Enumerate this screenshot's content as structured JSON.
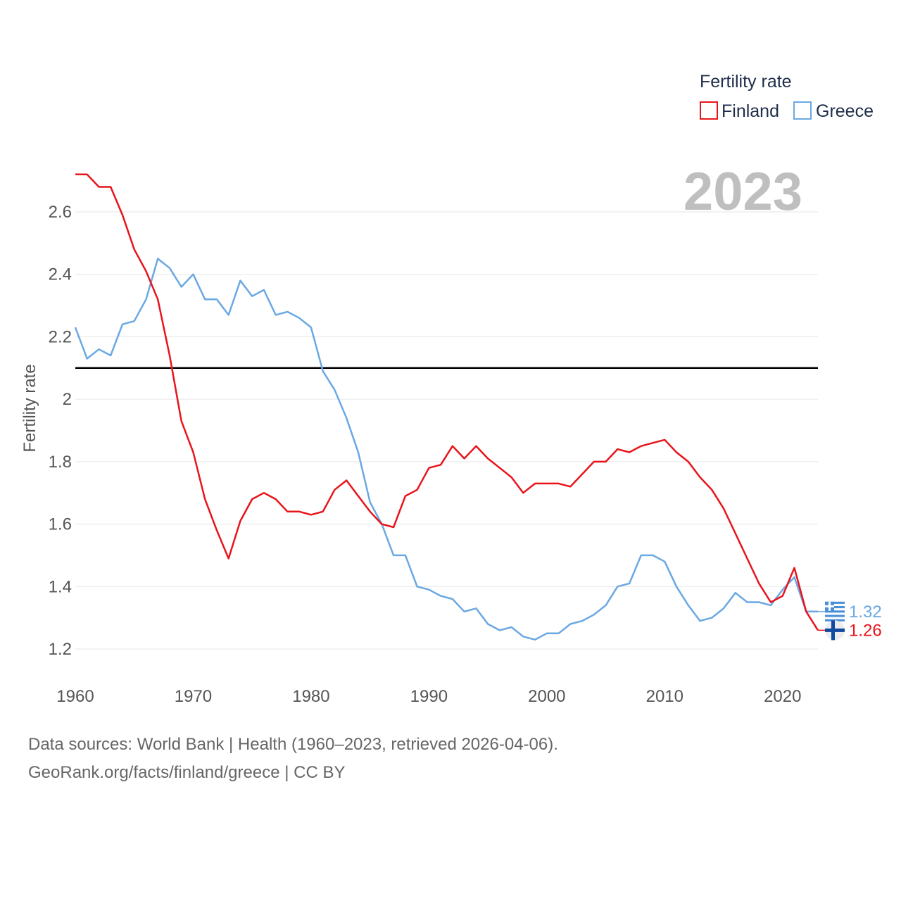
{
  "chart_data": {
    "type": "line",
    "title": "",
    "year_label": "2023",
    "legend_title": "Fertility rate",
    "ylabel": "Fertility rate",
    "xlabel": "",
    "xlim": [
      1960,
      2023
    ],
    "ylim": [
      1.13,
      2.75
    ],
    "x_ticks": [
      1960,
      1970,
      1980,
      1990,
      2000,
      2010,
      2020
    ],
    "y_ticks": [
      1.2,
      1.4,
      1.6,
      1.8,
      2,
      2.2,
      2.4,
      2.6
    ],
    "y_tick_labels": [
      "1.2",
      "1.4",
      "1.6",
      "1.8",
      "2",
      "2.2",
      "2.4",
      "2.6"
    ],
    "x_tick_labels": [
      "1960",
      "1970",
      "1980",
      "1990",
      "2000",
      "2010",
      "2020"
    ],
    "reference_line": 2.1,
    "years": [
      1960,
      1961,
      1962,
      1963,
      1964,
      1965,
      1966,
      1967,
      1968,
      1969,
      1970,
      1971,
      1972,
      1973,
      1974,
      1975,
      1976,
      1977,
      1978,
      1979,
      1980,
      1981,
      1982,
      1983,
      1984,
      1985,
      1986,
      1987,
      1988,
      1989,
      1990,
      1991,
      1992,
      1993,
      1994,
      1995,
      1996,
      1997,
      1998,
      1999,
      2000,
      2001,
      2002,
      2003,
      2004,
      2005,
      2006,
      2007,
      2008,
      2009,
      2010,
      2011,
      2012,
      2013,
      2014,
      2015,
      2016,
      2017,
      2018,
      2019,
      2020,
      2021,
      2022,
      2023
    ],
    "series": [
      {
        "name": "Finland",
        "color": "#e8141b",
        "end_label": "1.26",
        "values": [
          2.72,
          2.72,
          2.68,
          2.68,
          2.59,
          2.48,
          2.41,
          2.32,
          2.14,
          1.93,
          1.83,
          1.68,
          1.58,
          1.49,
          1.61,
          1.68,
          1.7,
          1.68,
          1.64,
          1.64,
          1.63,
          1.64,
          1.71,
          1.74,
          1.69,
          1.64,
          1.6,
          1.59,
          1.69,
          1.71,
          1.78,
          1.79,
          1.85,
          1.81,
          1.85,
          1.81,
          1.78,
          1.75,
          1.7,
          1.73,
          1.73,
          1.73,
          1.72,
          1.76,
          1.8,
          1.8,
          1.84,
          1.83,
          1.85,
          1.86,
          1.87,
          1.83,
          1.8,
          1.75,
          1.71,
          1.65,
          1.57,
          1.49,
          1.41,
          1.35,
          1.37,
          1.46,
          1.32,
          1.26
        ]
      },
      {
        "name": "Greece",
        "color": "#6aa8e3",
        "end_label": "1.32",
        "values": [
          2.23,
          2.13,
          2.16,
          2.14,
          2.24,
          2.25,
          2.32,
          2.45,
          2.42,
          2.36,
          2.4,
          2.32,
          2.32,
          2.27,
          2.38,
          2.33,
          2.35,
          2.27,
          2.28,
          2.26,
          2.23,
          2.09,
          2.03,
          1.94,
          1.83,
          1.67,
          1.6,
          1.5,
          1.5,
          1.4,
          1.39,
          1.37,
          1.36,
          1.32,
          1.33,
          1.28,
          1.26,
          1.27,
          1.24,
          1.23,
          1.25,
          1.25,
          1.28,
          1.29,
          1.31,
          1.34,
          1.4,
          1.41,
          1.5,
          1.5,
          1.48,
          1.4,
          1.34,
          1.29,
          1.3,
          1.33,
          1.38,
          1.35,
          1.35,
          1.34,
          1.39,
          1.43,
          1.32,
          1.32
        ]
      }
    ]
  },
  "legend": {
    "items": [
      {
        "label": "Finland",
        "color": "#e8141b"
      },
      {
        "label": "Greece",
        "color": "#6aa8e3"
      }
    ]
  },
  "footer": {
    "source_line": "Data sources: World Bank | Health (1960–2023, retrieved 2026-04-06).",
    "credit_line": "GeoRank.org/facts/finland/greece | CC BY"
  }
}
